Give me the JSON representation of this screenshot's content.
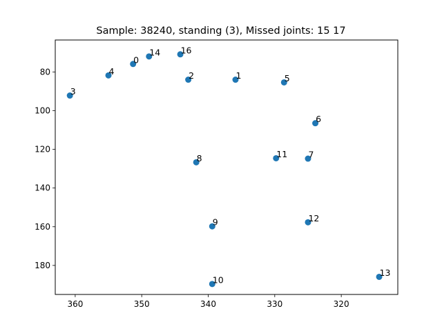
{
  "chart_data": {
    "type": "scatter",
    "title": "Sample: 38240, standing (3), Missed joints: 15  17",
    "xlabel": "",
    "ylabel": "",
    "xlim": [
      363,
      311.5
    ],
    "ylim": [
      195,
      63.5
    ],
    "x_inverted": true,
    "y_inverted": true,
    "grid": false,
    "x_ticks": [
      360,
      350,
      340,
      330,
      320
    ],
    "y_ticks": [
      80,
      100,
      120,
      140,
      160,
      180
    ],
    "color": "#1f77b4",
    "points": [
      {
        "label": "0",
        "x": 351.3,
        "y": 75.9
      },
      {
        "label": "1",
        "x": 335.9,
        "y": 84.0
      },
      {
        "label": "2",
        "x": 343.0,
        "y": 84.0
      },
      {
        "label": "3",
        "x": 360.8,
        "y": 92.2
      },
      {
        "label": "4",
        "x": 355.0,
        "y": 81.8
      },
      {
        "label": "5",
        "x": 328.6,
        "y": 85.4
      },
      {
        "label": "6",
        "x": 323.9,
        "y": 106.5
      },
      {
        "label": "7",
        "x": 325.0,
        "y": 124.8
      },
      {
        "label": "8",
        "x": 341.8,
        "y": 126.7
      },
      {
        "label": "9",
        "x": 339.4,
        "y": 159.8
      },
      {
        "label": "10",
        "x": 339.4,
        "y": 189.6
      },
      {
        "label": "11",
        "x": 329.8,
        "y": 124.6
      },
      {
        "label": "12",
        "x": 325.0,
        "y": 157.7
      },
      {
        "label": "13",
        "x": 314.3,
        "y": 185.9
      },
      {
        "label": "14",
        "x": 348.9,
        "y": 72.0
      },
      {
        "label": "16",
        "x": 344.2,
        "y": 70.9
      }
    ]
  }
}
